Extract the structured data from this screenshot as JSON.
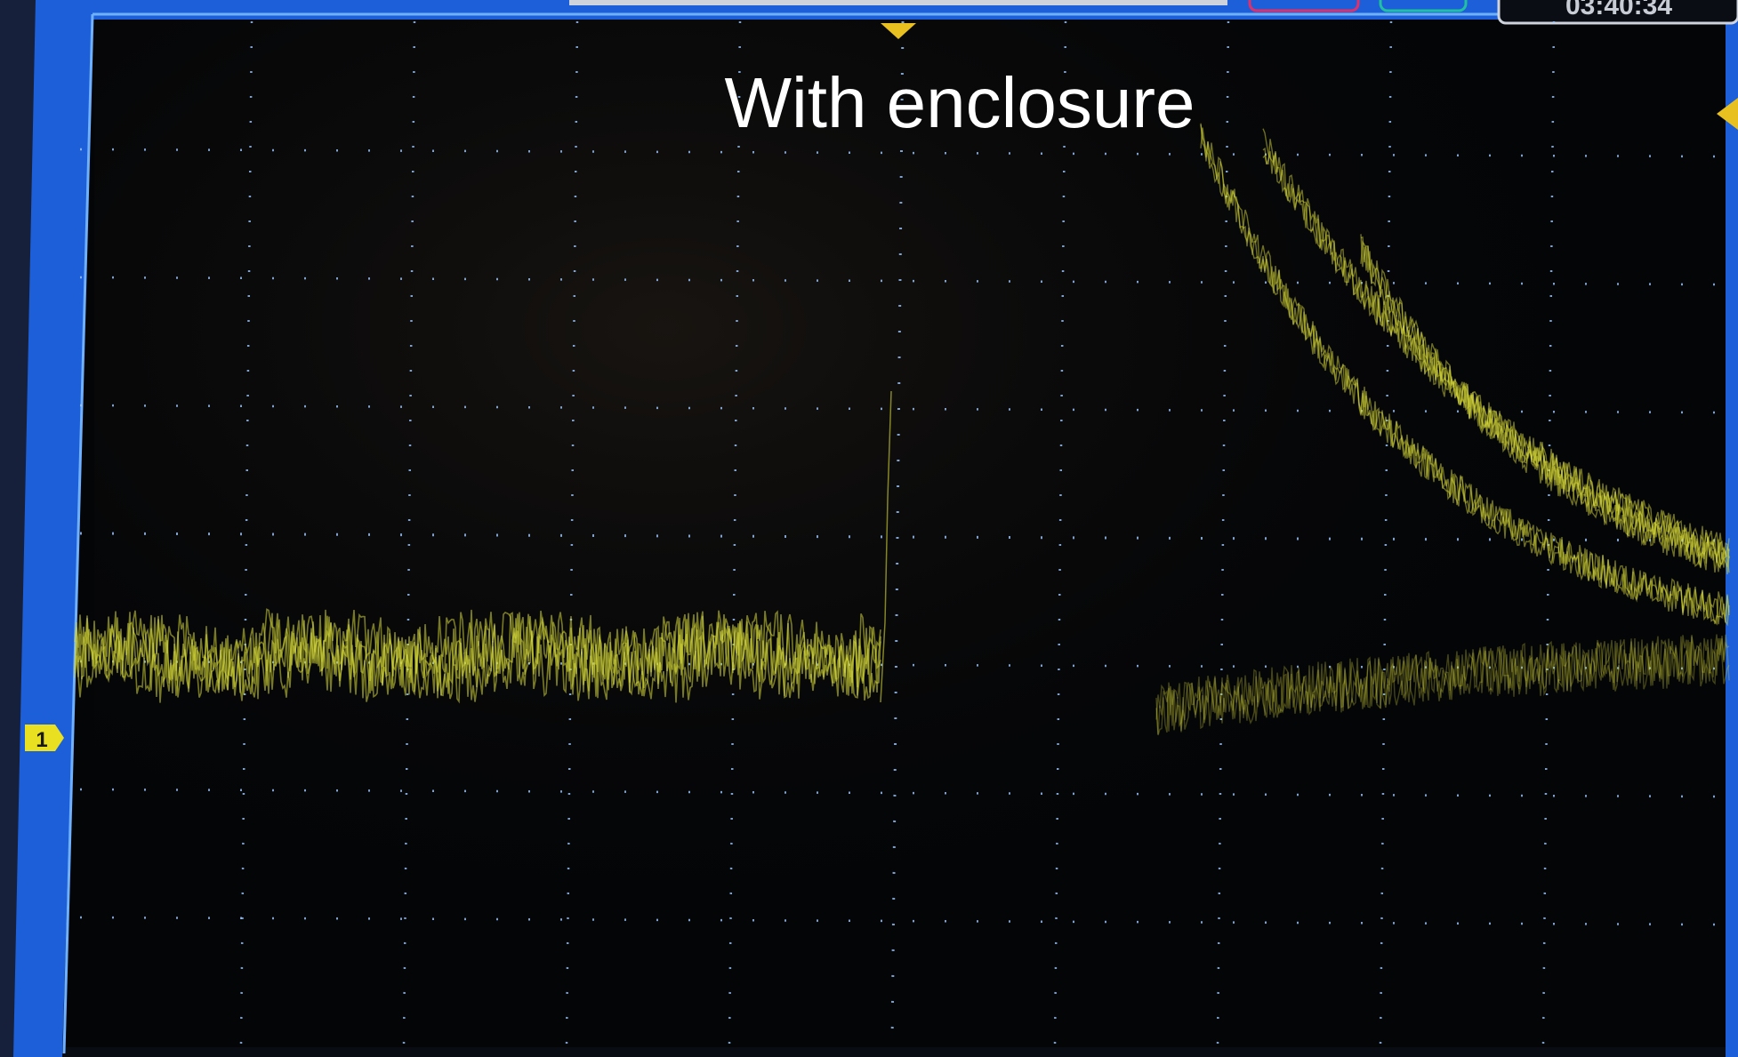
{
  "overlay": {
    "title": "With enclosure"
  },
  "scope": {
    "channel_marker": "1",
    "clock": "03:40:34"
  }
}
